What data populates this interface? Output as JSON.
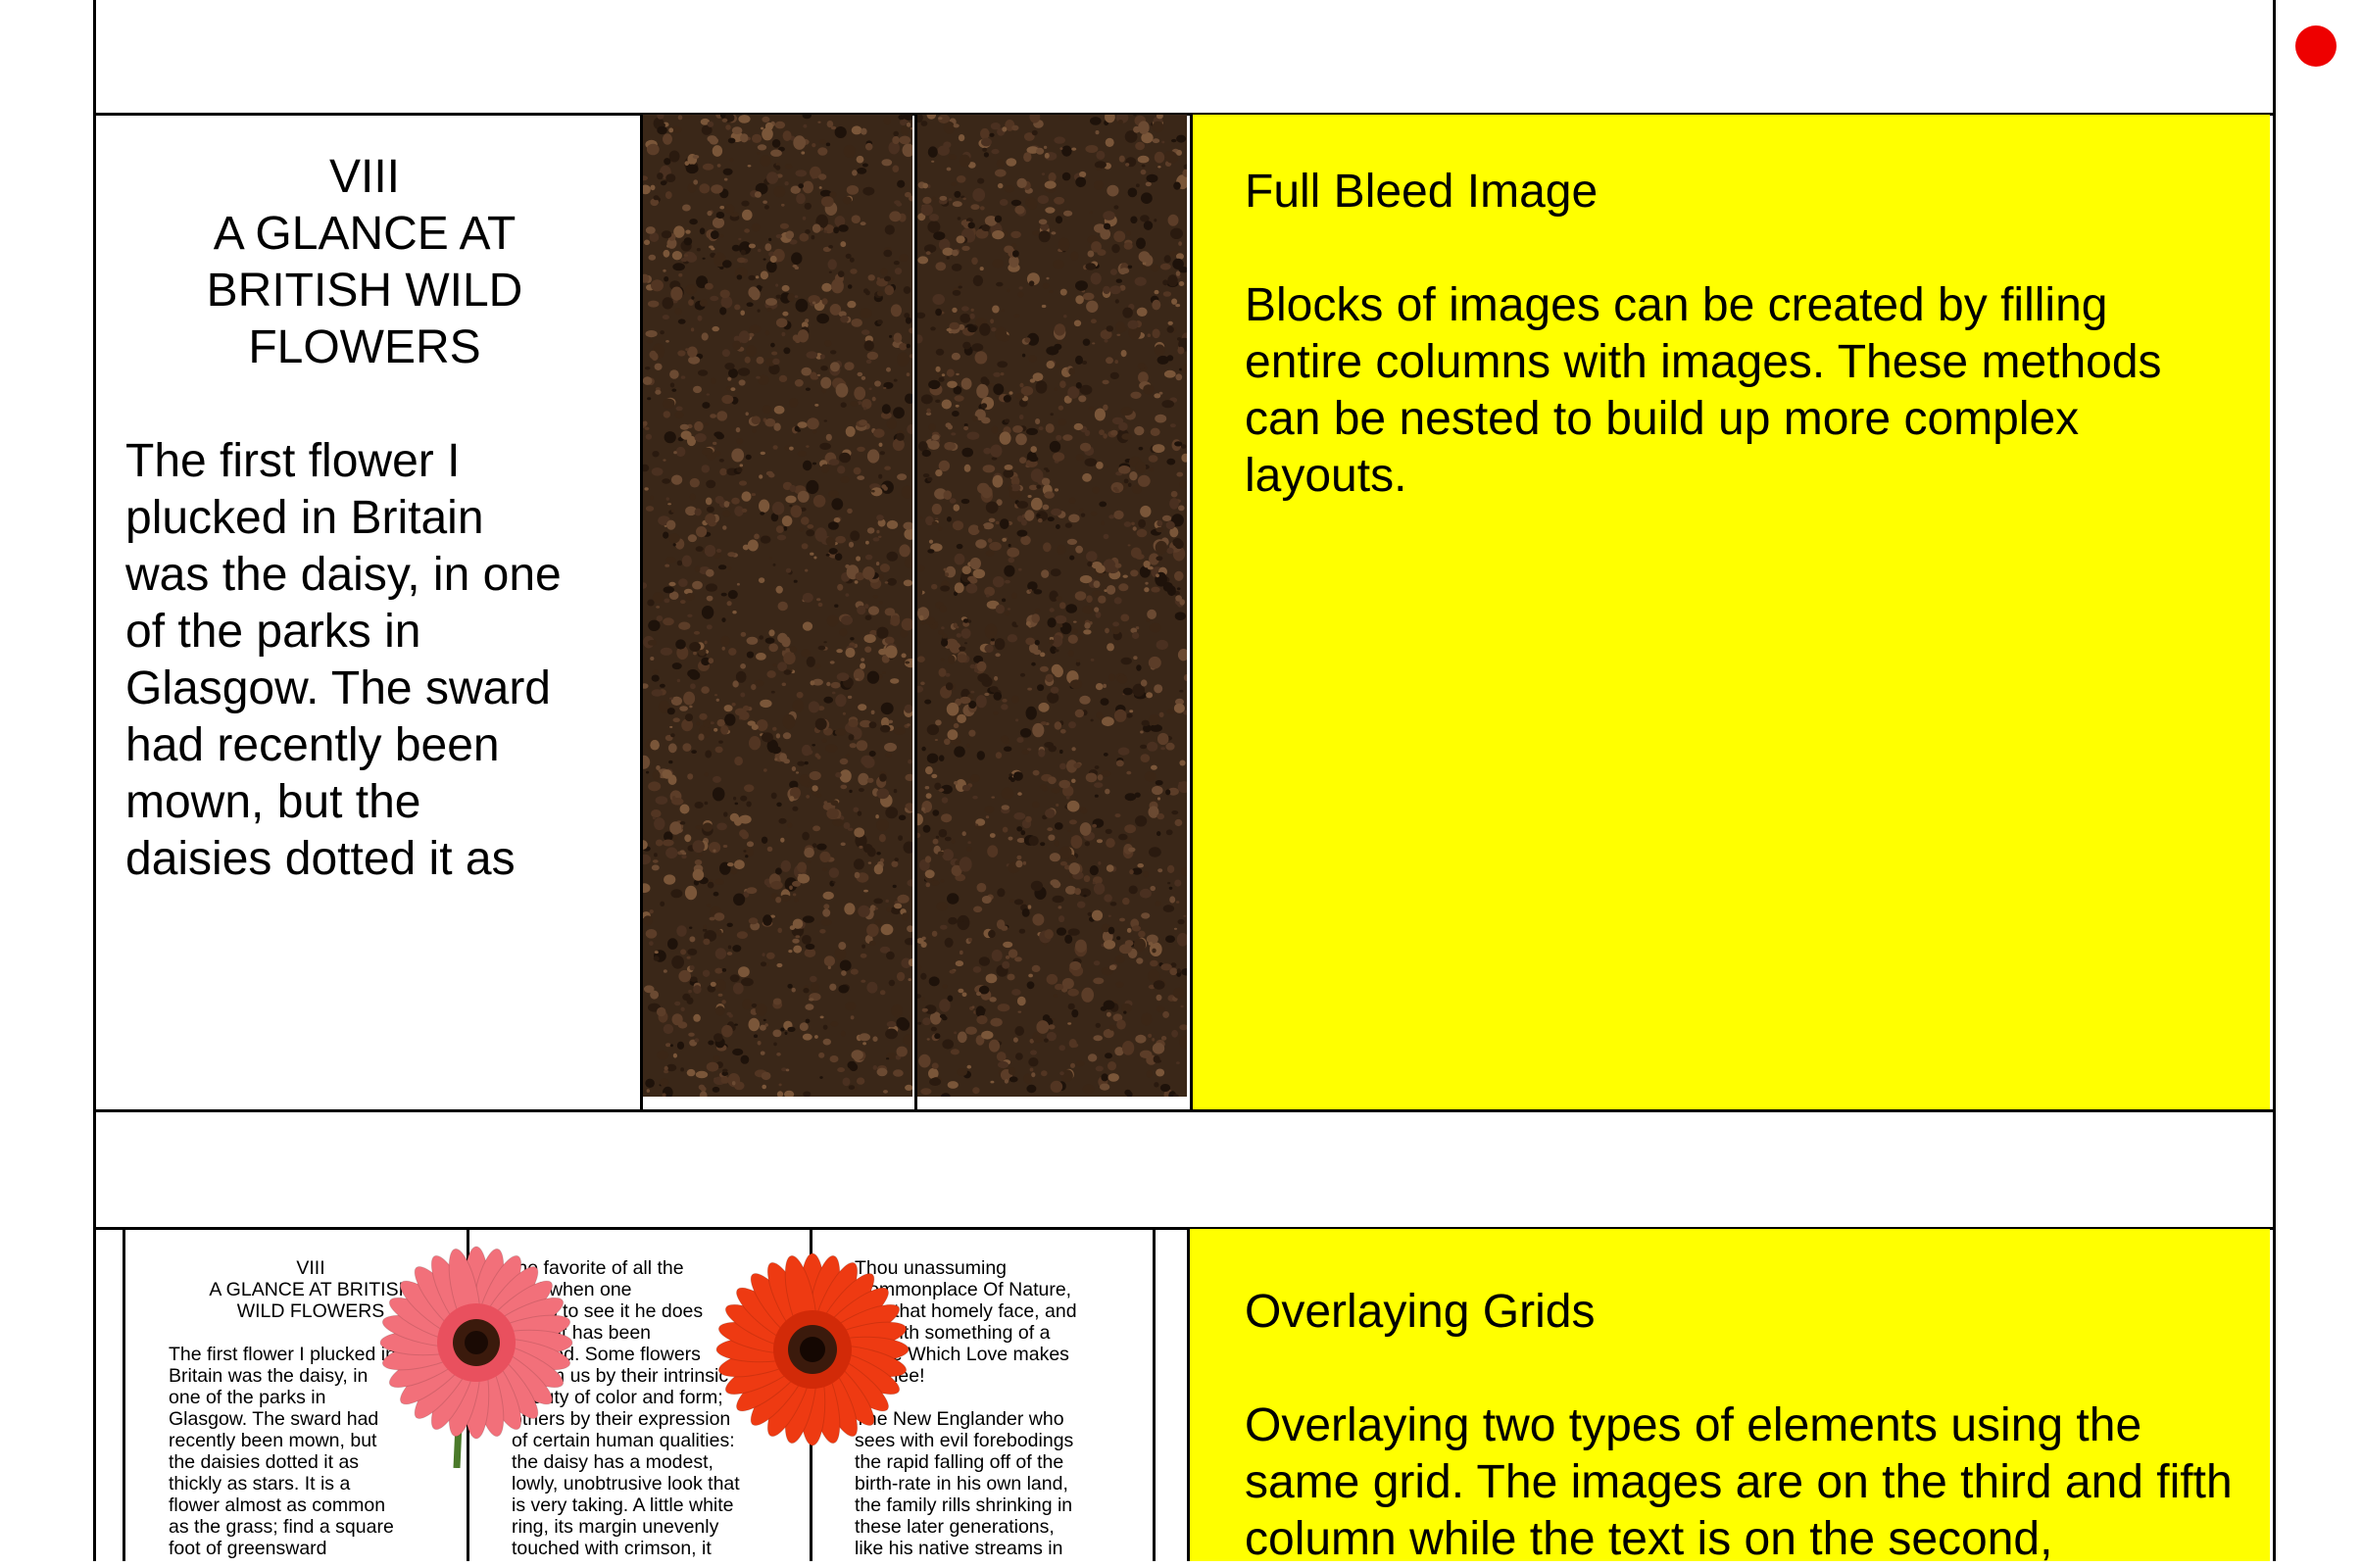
{
  "top_article": {
    "chapter": "VIII",
    "title_lines": [
      "A GLANCE AT",
      "BRITISH WILD",
      "FLOWERS"
    ],
    "body_lines": [
      "The first flower I",
      "plucked in Britain",
      "was the daisy, in one",
      "of the parks in",
      "Glasgow. The sward",
      "had recently been",
      "mown, but the",
      "daisies dotted it as"
    ]
  },
  "full_bleed": {
    "heading": "Full Bleed Image",
    "body": "Blocks of images can be created by filling entire columns with images. These methods can be nested to build up more complex layouts."
  },
  "overlay": {
    "heading": "Overlaying Grids",
    "body": "Overlaying two types of elements using the same grid. The images are on the third and fifth column while the text is on the second,"
  },
  "mini_columns": {
    "col1": {
      "chapter": "VIII",
      "title_lines": [
        "A GLANCE AT BRITISH",
        "WILD FLOWERS"
      ],
      "lines": [
        "The first flower I plucked in",
        "Britain was the daisy, in",
        "one of the parks in",
        "Glasgow. The sward had",
        "recently been mown, but",
        "the daisies dotted it as",
        "thickly as stars. It is a",
        "flower almost as common",
        "as the grass; find a square",
        "foot of greensward"
      ]
    },
    "col2": {
      "lines": [
        "the favorite of all the",
        "and when one",
        "longs to see it he does",
        "think it has been",
        "praised. Some flowers",
        "charm us by their intrinsic",
        "beauty of color and form;",
        "others by their expression",
        "of certain human qualities:",
        "the daisy has a modest,",
        "lowly, unobtrusive look that",
        "is very taking. A little white",
        "ring, its margin unevenly",
        "touched with crimson, it"
      ]
    },
    "col3": {
      "lines": [
        "Thou unassuming",
        "Commonplace Of Nature,",
        "with that homely face, and",
        "yet with something of a",
        "grace Which Love makes",
        "for thee!",
        "",
        "The New Englander who",
        "sees with evil forebodings",
        "the rapid falling off of the",
        "birth-rate in his own land,",
        "the family rills shrinking in",
        "these later generations,",
        "like his native streams in"
      ]
    }
  },
  "colors": {
    "yellow": "#ffff00",
    "dot": "#ee0000",
    "pink_flower": "#f2707a",
    "red_flower": "#ee3a12"
  }
}
